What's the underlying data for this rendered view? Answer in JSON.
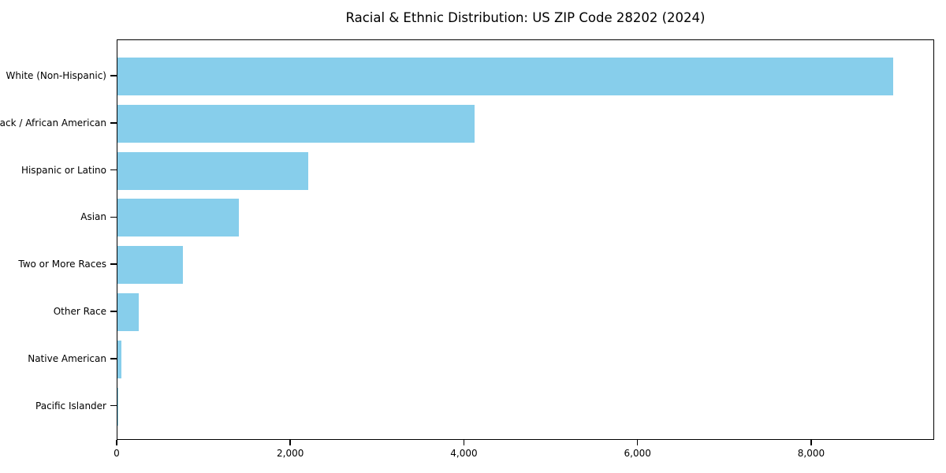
{
  "title": "Racial & Ethnic Distribution: US ZIP Code 28202 (2024)",
  "colors": {
    "bar": "#87CEEB",
    "spine": "#000000",
    "text": "#000000",
    "background": "#FFFFFF"
  },
  "chart_data": {
    "type": "bar",
    "orientation": "horizontal",
    "title": "Racial & Ethnic Distribution: US ZIP Code 28202 (2024)",
    "xlabel": "",
    "ylabel": "",
    "categories": [
      "White (Non-Hispanic)",
      "Black / African American",
      "Hispanic or Latino",
      "Asian",
      "Two or More Races",
      "Other Race",
      "Native American",
      "Pacific Islander"
    ],
    "values": [
      8940,
      4110,
      2200,
      1400,
      750,
      245,
      45,
      10
    ],
    "xlim": [
      0,
      9390
    ],
    "xticks": [
      0,
      2000,
      4000,
      6000,
      8000
    ],
    "xtick_labels": [
      "0",
      "2,000",
      "4,000",
      "6,000",
      "8,000"
    ],
    "grid": false,
    "legend": null
  }
}
